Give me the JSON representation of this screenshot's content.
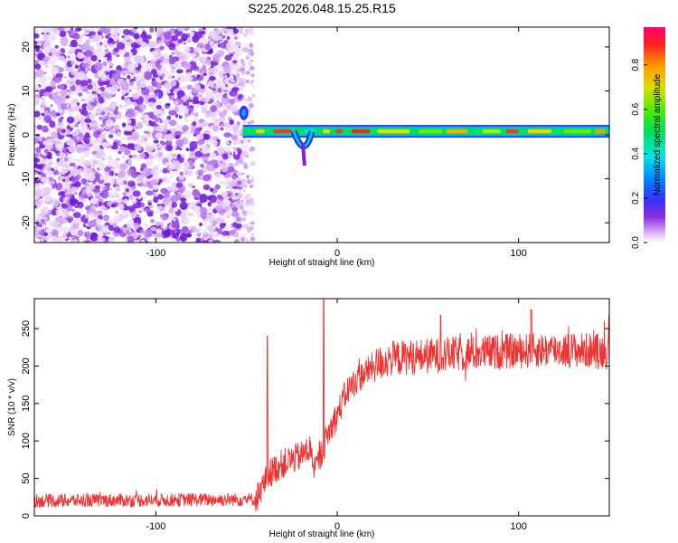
{
  "title": "S225.2026.048.15.25.R15",
  "chart_data": [
    {
      "type": "heatmap",
      "xlabel": "Height of straight line (km)",
      "ylabel": "Frequency (Hz)",
      "xlim": [
        -167,
        150
      ],
      "ylim": [
        -24.5,
        24.5
      ],
      "xticks": [
        -100,
        0,
        100
      ],
      "xtick_labels": [
        "-100",
        "0",
        "100"
      ],
      "yticks": [
        -20,
        -10,
        0,
        10,
        20
      ],
      "ytick_labels": [
        "-20",
        "-10",
        "0",
        "10",
        "20"
      ],
      "description_regions": {
        "noise_region_x": [
          -167,
          -53
        ],
        "onset_x": -53,
        "tone_frequency_hz": 0.8
      },
      "colorbar": {
        "label": "Normalized spectral amplitude",
        "range": [
          0,
          0.97
        ],
        "ticks": [
          0.0,
          0.2,
          0.4,
          0.6,
          0.8
        ],
        "tick_labels": [
          "0.0",
          "0.2",
          "0.4",
          "0.6",
          "0.8"
        ]
      }
    },
    {
      "type": "line",
      "xlabel": "Height of straight line (km)",
      "ylabel": "SNR (10 * v/v)",
      "xlim": [
        -167,
        150
      ],
      "ylim": [
        0,
        290
      ],
      "xticks": [
        -100,
        0,
        100
      ],
      "xtick_labels": [
        "-100",
        "0",
        "100"
      ],
      "yticks": [
        0,
        50,
        100,
        150,
        200,
        250
      ],
      "ytick_labels": [
        "0",
        "50",
        "100",
        "150",
        "200",
        "250"
      ],
      "color": "#ee3333",
      "series": [
        {
          "name": "SNR",
          "envelope_x": [
            -167,
            -45,
            -40,
            -36,
            -30,
            -20,
            -15,
            -12,
            -8,
            -5,
            0,
            5,
            10,
            20,
            30,
            40,
            60,
            80,
            100,
            120,
            150
          ],
          "envelope_y": [
            20,
            22,
            45,
            60,
            70,
            80,
            90,
            60,
            90,
            110,
            135,
            165,
            180,
            200,
            210,
            212,
            215,
            218,
            220,
            222,
            220
          ],
          "spikes": [
            {
              "x": -38.5,
              "y": 240
            },
            {
              "x": -7.5,
              "y": 290
            },
            {
              "x": 57,
              "y": 268
            },
            {
              "x": 107,
              "y": 275
            }
          ]
        }
      ]
    }
  ]
}
